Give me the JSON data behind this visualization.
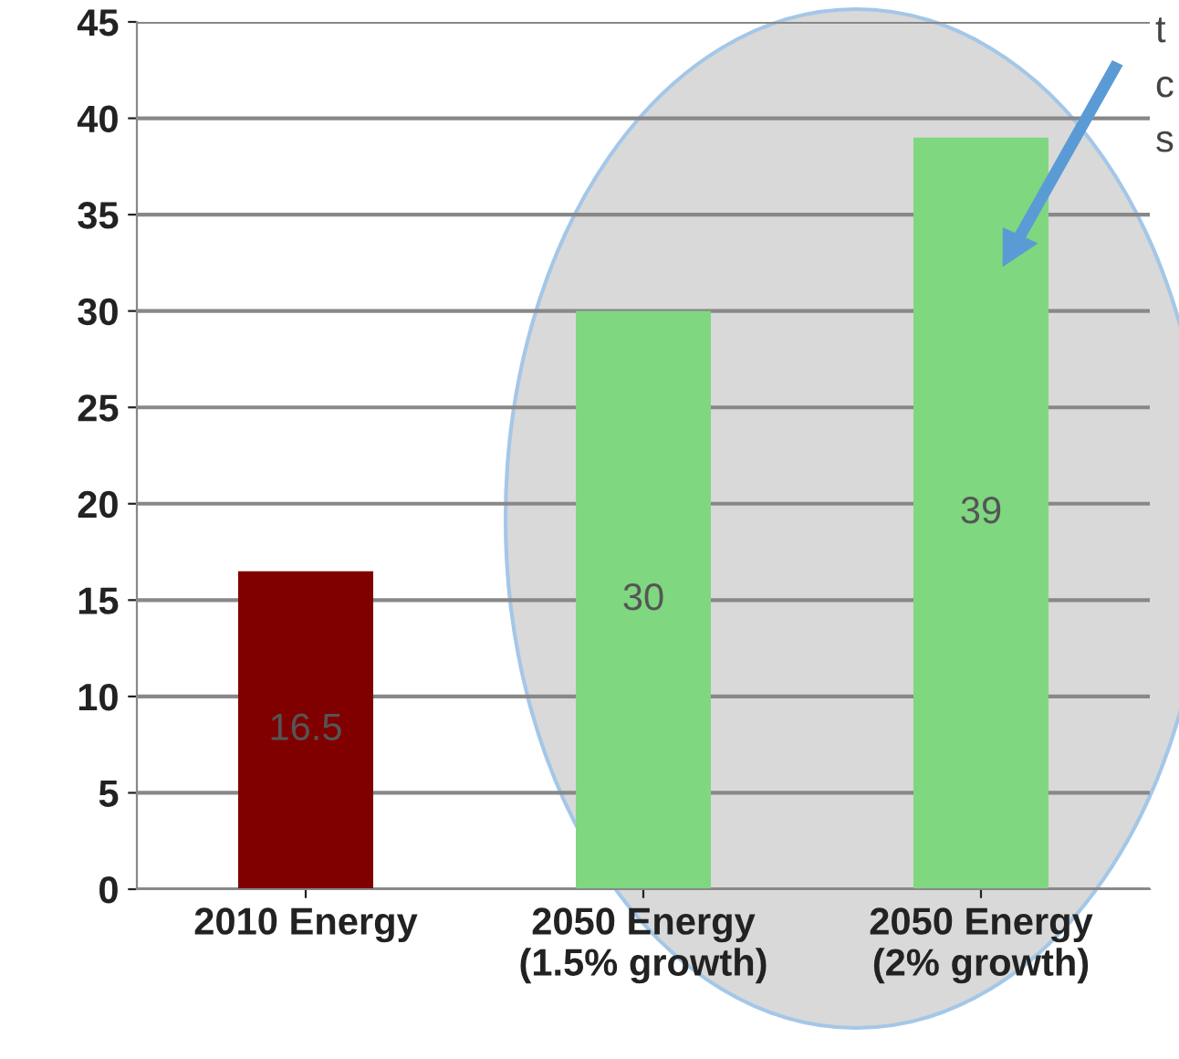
{
  "chart_data": {
    "type": "bar",
    "categories": [
      "2010 Energy",
      "2050 Energy\n(1.5% growth)",
      "2050 Energy\n(2% growth)"
    ],
    "values": [
      16.5,
      30,
      39
    ],
    "colors": [
      "#800000",
      "#7fd77f",
      "#7fd77f"
    ],
    "data_labels": true,
    "ylim": [
      0,
      45
    ],
    "yticks": [
      0,
      5,
      10,
      15,
      20,
      25,
      30,
      35,
      40,
      45
    ],
    "grid": "y",
    "annotations": [
      "t",
      "c",
      "s"
    ]
  }
}
